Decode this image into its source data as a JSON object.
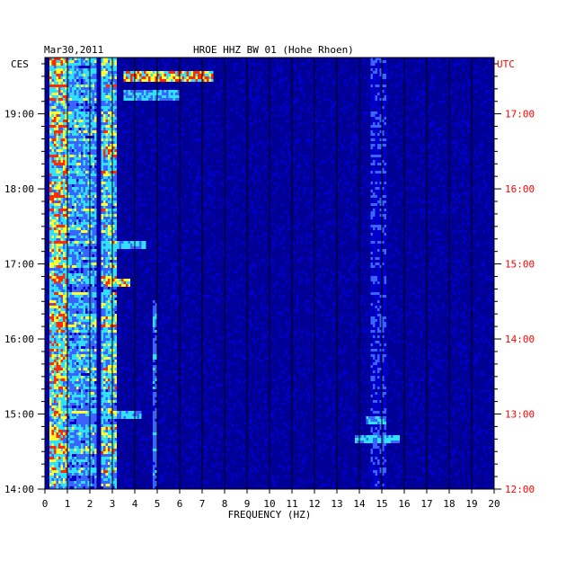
{
  "chart_data": {
    "type": "heatmap",
    "date": "Mar30,2011",
    "title": "HROE HHZ BW 01 (Hohe Rhoen)",
    "left_timezone": "CES",
    "right_timezone": "UTC",
    "xlabel": "FREQUENCY (HZ)",
    "xlim": [
      0,
      20
    ],
    "x_ticks": [
      "0",
      "1",
      "2",
      "3",
      "4",
      "5",
      "6",
      "7",
      "8",
      "9",
      "10",
      "11",
      "12",
      "13",
      "14",
      "15",
      "16",
      "17",
      "18",
      "19",
      "20"
    ],
    "left_time_ticks": [
      "19:00",
      "18:00",
      "17:00",
      "16:00",
      "15:00",
      "14:00"
    ],
    "right_time_ticks": [
      "17:00",
      "16:00",
      "15:00",
      "14:00",
      "13:00",
      "12:00"
    ],
    "time_range_utc_hours": [
      12.0,
      17.75
    ],
    "grid": true,
    "colors": {
      "background": "#000096",
      "low": "#0000c8",
      "mid": "#3a64ff",
      "high_cyan": "#30e0ff",
      "yellow": "#ffff30",
      "red": "#ff2a00",
      "utc_text": "#ff0000"
    },
    "energy_bands": [
      {
        "freq_range_hz": [
          0.2,
          1.0
        ],
        "level": "high",
        "duration": "full"
      },
      {
        "freq_range_hz": [
          1.0,
          2.3
        ],
        "level": "medium",
        "duration": "full"
      },
      {
        "freq_range_hz": [
          2.5,
          3.2
        ],
        "level": "medium-high",
        "duration": "full"
      },
      {
        "freq_range_hz": [
          4.8,
          5.0
        ],
        "level": "low-medium",
        "duration": "12:00-14:30 UTC"
      },
      {
        "freq_range_hz": [
          14.5,
          15.2
        ],
        "level": "low",
        "duration": "full"
      }
    ],
    "events": [
      {
        "time_utc": "17:30",
        "freq_range_hz": [
          3.5,
          7.5
        ],
        "level": "high"
      },
      {
        "time_utc": "17:15",
        "freq_range_hz": [
          3.5,
          6.0
        ],
        "level": "medium"
      },
      {
        "time_utc": "14:45",
        "freq_range_hz": [
          2.7,
          3.8
        ],
        "level": "high"
      },
      {
        "time_utc": "15:15",
        "freq_range_hz": [
          2.5,
          4.5
        ],
        "level": "medium"
      },
      {
        "time_utc": "16:30",
        "freq_range_hz": [
          2.5,
          3.2
        ],
        "level": "high"
      },
      {
        "time_utc": "13:00",
        "freq_range_hz": [
          2.5,
          4.3
        ],
        "level": "medium"
      },
      {
        "time_utc": "12:55",
        "freq_range_hz": [
          14.3,
          15.2
        ],
        "level": "medium"
      },
      {
        "time_utc": "12:40",
        "freq_range_hz": [
          13.8,
          15.8
        ],
        "level": "medium"
      }
    ]
  }
}
